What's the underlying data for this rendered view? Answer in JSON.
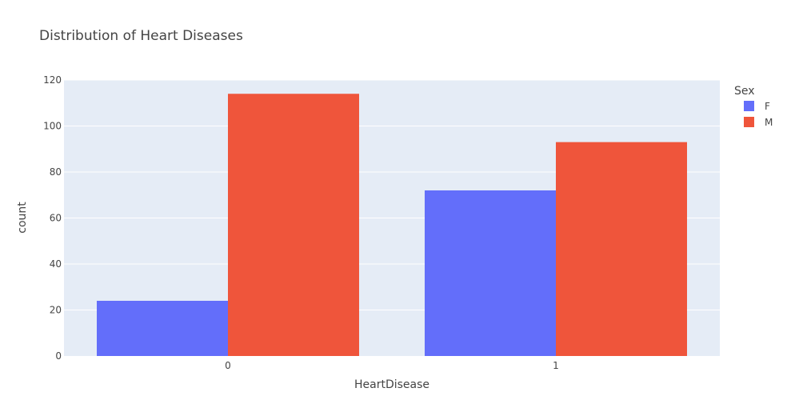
{
  "chart_data": {
    "type": "bar",
    "title": "Distribution of Heart Diseases",
    "xlabel": "HeartDisease",
    "ylabel": "count",
    "categories": [
      "0",
      "1"
    ],
    "series": [
      {
        "name": "F",
        "values": [
          24,
          72
        ],
        "color": "#636efa"
      },
      {
        "name": "M",
        "values": [
          114,
          93
        ],
        "color": "#ef553b"
      }
    ],
    "ylim": [
      0,
      120
    ],
    "yticks": [
      0,
      20,
      40,
      60,
      80,
      100,
      120
    ],
    "legend": {
      "title": "Sex",
      "placement": "top-right"
    },
    "grid": true,
    "plot_background": "#e5ecf6",
    "grid_color": "#ffffff"
  }
}
